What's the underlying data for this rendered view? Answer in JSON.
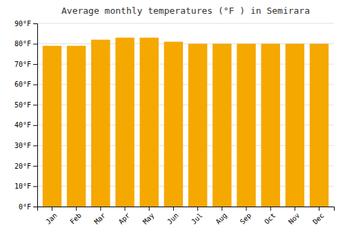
{
  "chart_data": {
    "type": "bar",
    "title": "Average monthly temperatures (°F ) in Semirara",
    "categories": [
      "Jan",
      "Feb",
      "Mar",
      "Apr",
      "May",
      "Jun",
      "Jul",
      "Aug",
      "Sep",
      "Oct",
      "Nov",
      "Dec"
    ],
    "values": [
      79,
      79,
      82,
      83,
      83,
      81,
      80,
      80,
      80,
      80,
      80,
      80
    ],
    "color": "#F5A800",
    "ylim": [
      0,
      90
    ],
    "yticks": [
      {
        "value": 0,
        "label": "0°F"
      },
      {
        "value": 10,
        "label": "10°F"
      },
      {
        "value": 20,
        "label": "20°F"
      },
      {
        "value": 30,
        "label": "30°F"
      },
      {
        "value": 40,
        "label": "40°F"
      },
      {
        "value": 50,
        "label": "50°F"
      },
      {
        "value": 60,
        "label": "60°F"
      },
      {
        "value": 70,
        "label": "70°F"
      },
      {
        "value": 80,
        "label": "80°F"
      },
      {
        "value": 90,
        "label": "90°F"
      }
    ],
    "grid": true
  }
}
